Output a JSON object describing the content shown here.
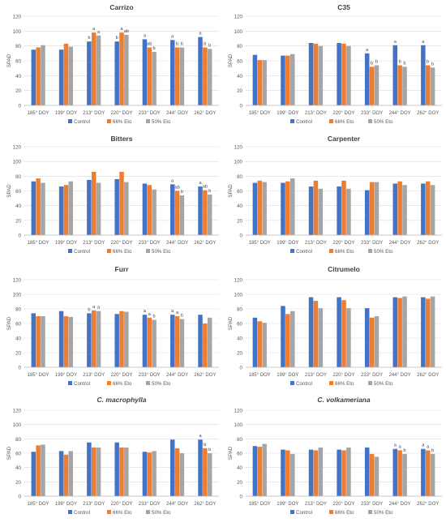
{
  "figure": {
    "colors": {
      "Control": "#4472C4",
      "66% Eto": "#ED7D31",
      "50% Eto": "#A5A5A5"
    },
    "legend_labels": [
      "Control",
      "66% Eto",
      "50% Eto"
    ]
  },
  "chart_data": [
    {
      "type": "bar",
      "title": "Carrizo",
      "ylabel": "SPAD",
      "ylim": [
        0,
        120
      ],
      "yticks": [
        0,
        20,
        40,
        60,
        80,
        100,
        120
      ],
      "categories": [
        "185° DOY",
        "199° DOY",
        "213° DOY",
        "220° DOY",
        "233° DOY",
        "244° DOY",
        "262° DOY"
      ],
      "series": [
        {
          "name": "Control",
          "values": [
            75,
            75,
            86,
            86,
            89,
            88,
            92
          ]
        },
        {
          "name": "66% Eto",
          "values": [
            78,
            83,
            98,
            98,
            78,
            78,
            78
          ]
        },
        {
          "name": "50% Eto",
          "values": [
            81,
            79,
            94,
            95,
            72,
            78,
            76
          ]
        }
      ],
      "letters": [
        null,
        null,
        [
          "b",
          "a",
          "a"
        ],
        [
          "b",
          "a",
          "ab"
        ],
        [
          "a",
          "ab",
          "b"
        ],
        [
          "a",
          "b",
          "b"
        ],
        [
          "a",
          "b",
          "b"
        ]
      ],
      "legend": "bottom"
    },
    {
      "type": "bar",
      "title": "C35",
      "ylabel": "SPAD",
      "ylim": [
        0,
        120
      ],
      "yticks": [
        0,
        20,
        40,
        60,
        80,
        100,
        120
      ],
      "categories": [
        "185° DOY",
        "199° DOY",
        "213° DOY",
        "220° DOY",
        "233° DOY",
        "244° DOY",
        "262° DOY"
      ],
      "series": [
        {
          "name": "Control",
          "values": [
            68,
            67,
            84,
            84,
            70,
            81,
            81
          ]
        },
        {
          "name": "66% Eto",
          "values": [
            61,
            67,
            83,
            83,
            52,
            54,
            54
          ]
        },
        {
          "name": "50% Eto",
          "values": [
            61,
            69,
            80,
            80,
            54,
            52,
            51
          ]
        }
      ],
      "letters": [
        null,
        null,
        null,
        null,
        [
          "a",
          "b",
          "b"
        ],
        [
          "a",
          "b",
          "b"
        ],
        [
          "a",
          "b",
          "b"
        ]
      ],
      "legend": "bottom"
    },
    {
      "type": "bar",
      "title": "Bitters",
      "ylabel": "SPAD",
      "ylim": [
        0,
        120
      ],
      "yticks": [
        0,
        20,
        40,
        60,
        80,
        100,
        120
      ],
      "categories": [
        "185° DOY",
        "199° DOY",
        "213° DOY",
        "220° DOY",
        "233° DOY",
        "244° DOY",
        "262° DOY"
      ],
      "series": [
        {
          "name": "Control",
          "values": [
            73,
            66,
            75,
            76,
            70,
            69,
            66
          ]
        },
        {
          "name": "66% Eto",
          "values": [
            77,
            68,
            86,
            86,
            68,
            60,
            61
          ]
        },
        {
          "name": "50% Eto",
          "values": [
            71,
            73,
            71,
            72,
            62,
            54,
            55
          ]
        }
      ],
      "letters": [
        null,
        null,
        null,
        null,
        null,
        [
          "a",
          "ab",
          "b"
        ],
        [
          "a",
          "ab",
          "b"
        ]
      ],
      "legend": "bottom"
    },
    {
      "type": "bar",
      "title": "Carpenter",
      "ylabel": "SPAD",
      "ylim": [
        0,
        120
      ],
      "yticks": [
        0,
        20,
        40,
        60,
        80,
        100,
        120
      ],
      "categories": [
        "185° DOY",
        "199° DOY",
        "213° DOY",
        "220° DOY",
        "233° DOY",
        "244° DOY",
        "262° DOY"
      ],
      "series": [
        {
          "name": "Control",
          "values": [
            71,
            71,
            66,
            66,
            61,
            70,
            70
          ]
        },
        {
          "name": "66% Eto",
          "values": [
            74,
            73,
            74,
            74,
            72,
            73,
            73
          ]
        },
        {
          "name": "50% Eto",
          "values": [
            72,
            77,
            63,
            63,
            72,
            68,
            68
          ]
        }
      ],
      "letters": [
        null,
        null,
        null,
        null,
        null,
        null,
        null
      ],
      "legend": "bottom"
    },
    {
      "type": "bar",
      "title": "Furr",
      "ylabel": "SPAD",
      "ylim": [
        0,
        120
      ],
      "yticks": [
        0,
        20,
        40,
        60,
        80,
        100,
        120
      ],
      "categories": [
        "185° DOY",
        "199° DOY",
        "213° DOY",
        "220° DOY",
        "233° DOY",
        "244° DOY",
        "262° DOY"
      ],
      "series": [
        {
          "name": "Control",
          "values": [
            74,
            77,
            74,
            73,
            72,
            72,
            72
          ]
        },
        {
          "name": "66% Eto",
          "values": [
            70,
            70,
            78,
            77,
            68,
            70,
            60
          ]
        },
        {
          "name": "50% Eto",
          "values": [
            70,
            69,
            77,
            76,
            65,
            66,
            68
          ]
        }
      ],
      "letters": [
        null,
        null,
        [
          "b",
          "a",
          "a"
        ],
        null,
        [
          "a",
          "a",
          "b"
        ],
        [
          "a",
          "a",
          "b"
        ],
        null
      ],
      "legend": "bottom"
    },
    {
      "type": "bar",
      "title": "Citrumelo",
      "ylabel": "SPAD",
      "ylim": [
        0,
        120
      ],
      "yticks": [
        0,
        20,
        40,
        60,
        80,
        100,
        120
      ],
      "categories": [
        "185° DOY",
        "199° DOY",
        "213° DOY",
        "220° DOY",
        "233° DOY",
        "244° DOY",
        "262° DOY"
      ],
      "series": [
        {
          "name": "Control",
          "values": [
            68,
            84,
            96,
            96,
            81,
            96,
            96
          ]
        },
        {
          "name": "66% Eto",
          "values": [
            63,
            73,
            91,
            92,
            68,
            95,
            94
          ]
        },
        {
          "name": "50% Eto",
          "values": [
            61,
            77,
            81,
            81,
            70,
            97,
            97
          ]
        }
      ],
      "letters": [
        null,
        null,
        null,
        null,
        null,
        null,
        null
      ],
      "legend": "bottom"
    },
    {
      "type": "bar",
      "title": "C. macrophylla",
      "title_italic": true,
      "ylabel": "SPAD",
      "ylim": [
        0,
        120
      ],
      "yticks": [
        0,
        20,
        40,
        60,
        80,
        100,
        120
      ],
      "categories": [
        "185° DOY",
        "199° DOY",
        "213° DOY",
        "220° DOY",
        "233° DOY",
        "244° DOY",
        "262° DOY"
      ],
      "series": [
        {
          "name": "Control",
          "values": [
            62,
            63,
            75,
            75,
            62,
            79,
            79
          ]
        },
        {
          "name": "66% Eto",
          "values": [
            71,
            58,
            68,
            68,
            61,
            67,
            67
          ]
        },
        {
          "name": "50% Eto",
          "values": [
            72,
            63,
            68,
            68,
            63,
            60,
            60
          ]
        }
      ],
      "letters": [
        null,
        null,
        null,
        null,
        null,
        null,
        [
          "a",
          "b",
          "b"
        ]
      ],
      "legend": "bottom"
    },
    {
      "type": "bar",
      "title": "C. volkameriana",
      "title_italic": true,
      "ylabel": "SPAD",
      "ylim": [
        0,
        120
      ],
      "yticks": [
        0,
        20,
        40,
        60,
        80,
        100,
        120
      ],
      "categories": [
        "185° DOY",
        "199° DOY",
        "213° DOY",
        "220° DOY",
        "233° DOY",
        "244° DOY",
        "262° DOY"
      ],
      "series": [
        {
          "name": "Control",
          "values": [
            70,
            65,
            65,
            65,
            68,
            66,
            66
          ]
        },
        {
          "name": "66% Eto",
          "values": [
            69,
            64,
            64,
            64,
            59,
            64,
            64
          ]
        },
        {
          "name": "50% Eto",
          "values": [
            73,
            59,
            68,
            68,
            55,
            59,
            59
          ]
        }
      ],
      "letters": [
        null,
        null,
        null,
        null,
        null,
        [
          "a",
          "a",
          "b"
        ],
        [
          "a",
          "a",
          "b"
        ]
      ],
      "legend": "bottom"
    }
  ]
}
